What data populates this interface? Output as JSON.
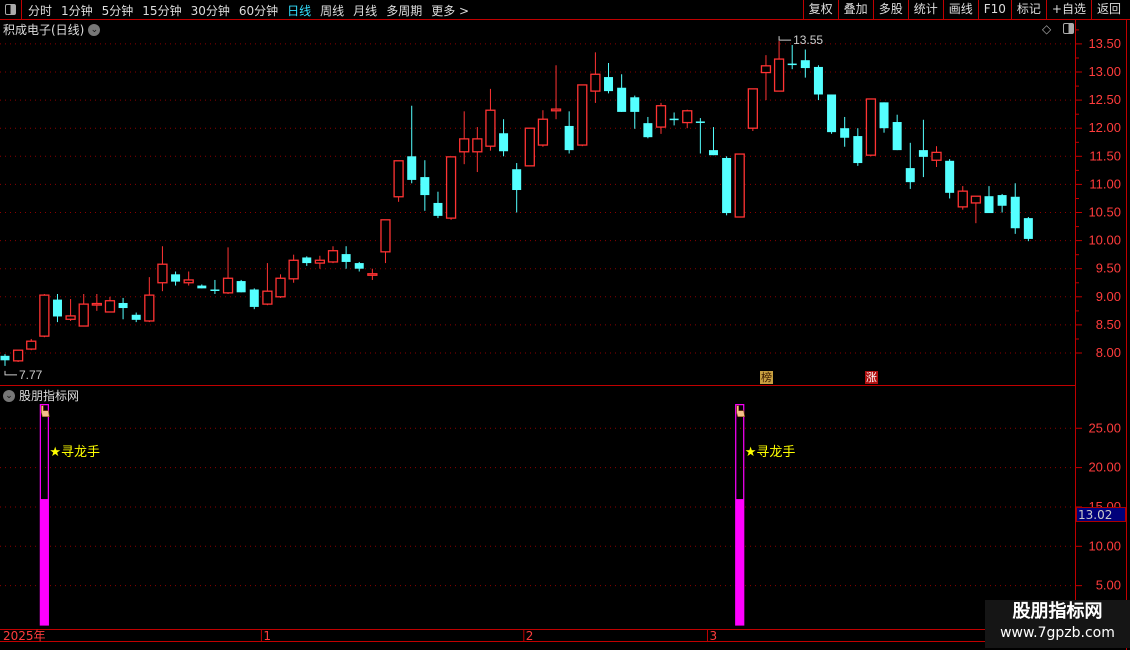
{
  "toolbar": {
    "periods": [
      "分时",
      "1分钟",
      "5分钟",
      "15分钟",
      "30分钟",
      "60分钟",
      "日线",
      "周线",
      "月线",
      "多周期",
      "更多 >"
    ],
    "active_period": "日线",
    "buttons": [
      "复权",
      "叠加",
      "多股",
      "统计",
      "画线",
      "F10",
      "标记",
      "+自选",
      "返回"
    ]
  },
  "chart_title": "积成电子(日线)",
  "indicator_title": "股朋指标网",
  "badges": [
    {
      "label": "榜",
      "candle_index": 58
    },
    {
      "label": "涨",
      "candle_index": 66
    }
  ],
  "readout": "13.02",
  "watermark": {
    "name": "股朋指标网",
    "url": "www.7gpzb.com"
  },
  "colors": {
    "up": "#ff3333",
    "down": "#54ffff",
    "axis": "#ff3c3c",
    "grid": "#8b0000",
    "indicator": "#ff00ff",
    "signal_text": "#ffff00",
    "border": "#c00000"
  },
  "chart_data": [
    {
      "type": "candlestick",
      "ylim": [
        7.6,
        13.7
      ],
      "yticks": [
        "8.00",
        "8.50",
        "9.00",
        "9.50",
        "10.00",
        "10.50",
        "11.00",
        "11.50",
        "12.00",
        "12.50",
        "13.00",
        "13.50"
      ],
      "grid": true,
      "x_labels": [
        {
          "label": "2025年",
          "candle_index": 0
        },
        {
          "label": "1",
          "candle_index": 20
        },
        {
          "label": "2",
          "candle_index": 40
        },
        {
          "label": "3",
          "candle_index": 54
        }
      ],
      "annotations": [
        {
          "text": "13.55",
          "type": "high",
          "candle_index": 59
        },
        {
          "text": "7.77",
          "type": "low",
          "candle_index": 0
        }
      ],
      "ohlc": [
        [
          7.95,
          7.98,
          7.77,
          7.87
        ],
        [
          7.86,
          8.05,
          7.84,
          8.05
        ],
        [
          8.07,
          8.25,
          8.05,
          8.21
        ],
        [
          8.3,
          9.05,
          8.28,
          9.03
        ],
        [
          8.95,
          9.05,
          8.55,
          8.65
        ],
        [
          8.6,
          8.96,
          8.57,
          8.66
        ],
        [
          8.48,
          9.05,
          8.48,
          8.87
        ],
        [
          8.87,
          9.05,
          8.75,
          8.88
        ],
        [
          8.73,
          9.0,
          8.73,
          8.93
        ],
        [
          8.89,
          8.98,
          8.6,
          8.8
        ],
        [
          8.68,
          8.72,
          8.55,
          8.59
        ],
        [
          8.57,
          9.35,
          8.55,
          9.03
        ],
        [
          9.25,
          9.9,
          9.1,
          9.58
        ],
        [
          9.4,
          9.45,
          9.2,
          9.27
        ],
        [
          9.25,
          9.45,
          9.2,
          9.3
        ],
        [
          9.2,
          9.22,
          9.15,
          9.15
        ],
        [
          9.13,
          9.3,
          9.05,
          9.12
        ],
        [
          9.07,
          9.88,
          9.05,
          9.33
        ],
        [
          9.28,
          9.3,
          9.08,
          9.08
        ],
        [
          9.13,
          9.15,
          8.78,
          8.82
        ],
        [
          8.87,
          9.6,
          8.85,
          9.1
        ],
        [
          9.0,
          9.4,
          8.98,
          9.33
        ],
        [
          9.32,
          9.75,
          9.25,
          9.65
        ],
        [
          9.7,
          9.72,
          9.55,
          9.6
        ],
        [
          9.6,
          9.73,
          9.5,
          9.65
        ],
        [
          9.62,
          9.9,
          9.6,
          9.82
        ],
        [
          9.76,
          9.9,
          9.5,
          9.62
        ],
        [
          9.6,
          9.62,
          9.45,
          9.5
        ],
        [
          9.4,
          9.5,
          9.3,
          9.41
        ],
        [
          9.8,
          10.37,
          9.6,
          10.37
        ],
        [
          10.78,
          11.42,
          10.69,
          11.42
        ],
        [
          11.5,
          12.4,
          11.02,
          11.08
        ],
        [
          11.13,
          11.43,
          10.53,
          10.81
        ],
        [
          10.67,
          10.87,
          10.4,
          10.44
        ],
        [
          10.4,
          11.49,
          10.37,
          11.49
        ],
        [
          11.58,
          12.3,
          11.36,
          11.81
        ],
        [
          11.58,
          12.02,
          11.22,
          11.81
        ],
        [
          11.68,
          12.7,
          11.6,
          12.32
        ],
        [
          11.91,
          12.16,
          11.5,
          11.59
        ],
        [
          11.27,
          11.38,
          10.5,
          10.9
        ],
        [
          11.33,
          12.0,
          11.33,
          12.0
        ],
        [
          11.7,
          12.32,
          11.67,
          12.16
        ],
        [
          12.31,
          13.12,
          12.16,
          12.34
        ],
        [
          12.04,
          12.3,
          11.55,
          11.61
        ],
        [
          11.7,
          12.77,
          11.68,
          12.77
        ],
        [
          12.66,
          13.35,
          12.45,
          12.96
        ],
        [
          12.91,
          13.16,
          12.62,
          12.66
        ],
        [
          12.72,
          12.96,
          12.29,
          12.29
        ],
        [
          12.55,
          12.58,
          11.99,
          12.29
        ],
        [
          12.09,
          12.2,
          11.82,
          11.84
        ],
        [
          12.02,
          12.45,
          11.9,
          12.4
        ],
        [
          12.17,
          12.28,
          12.05,
          12.16
        ],
        [
          12.1,
          12.33,
          12.0,
          12.31
        ],
        [
          12.12,
          12.18,
          11.55,
          12.11
        ],
        [
          11.61,
          12.02,
          11.52,
          11.52
        ],
        [
          11.47,
          11.5,
          10.45,
          10.49
        ],
        [
          10.42,
          11.54,
          10.42,
          11.54
        ],
        [
          12.0,
          12.7,
          11.95,
          12.7
        ],
        [
          12.99,
          13.3,
          12.5,
          13.11
        ],
        [
          12.66,
          13.55,
          12.66,
          13.23
        ],
        [
          13.15,
          13.48,
          13.05,
          13.14
        ],
        [
          13.21,
          13.4,
          12.9,
          13.07
        ],
        [
          13.09,
          13.12,
          12.5,
          12.6
        ],
        [
          12.6,
          12.6,
          11.9,
          11.93
        ],
        [
          12.0,
          12.2,
          11.67,
          11.83
        ],
        [
          11.86,
          12.0,
          11.33,
          11.38
        ],
        [
          11.52,
          12.52,
          11.5,
          12.52
        ],
        [
          12.46,
          12.46,
          11.92,
          12.0
        ],
        [
          12.11,
          12.24,
          11.61,
          11.61
        ],
        [
          11.29,
          11.74,
          10.92,
          11.04
        ],
        [
          11.61,
          12.15,
          11.13,
          11.49
        ],
        [
          11.43,
          11.68,
          11.31,
          11.57
        ],
        [
          11.42,
          11.45,
          10.75,
          10.85
        ],
        [
          10.6,
          10.97,
          10.55,
          10.88
        ],
        [
          10.67,
          10.79,
          10.31,
          10.79
        ],
        [
          10.79,
          10.97,
          10.49,
          10.49
        ],
        [
          10.81,
          10.83,
          10.5,
          10.62
        ],
        [
          10.78,
          11.02,
          10.12,
          10.22
        ],
        [
          10.4,
          10.42,
          9.99,
          10.03
        ]
      ]
    },
    {
      "type": "bar",
      "ylim": [
        0,
        29
      ],
      "yticks": [
        "5.00",
        "10.00",
        "15.00",
        "20.00",
        "25.00"
      ],
      "grid": true,
      "signals": [
        {
          "candle_index": 3,
          "outline_value": 28,
          "fill_value": 16,
          "label": "★寻龙手"
        },
        {
          "candle_index": 56,
          "outline_value": 28,
          "fill_value": 16,
          "label": "★寻龙手"
        }
      ]
    }
  ]
}
